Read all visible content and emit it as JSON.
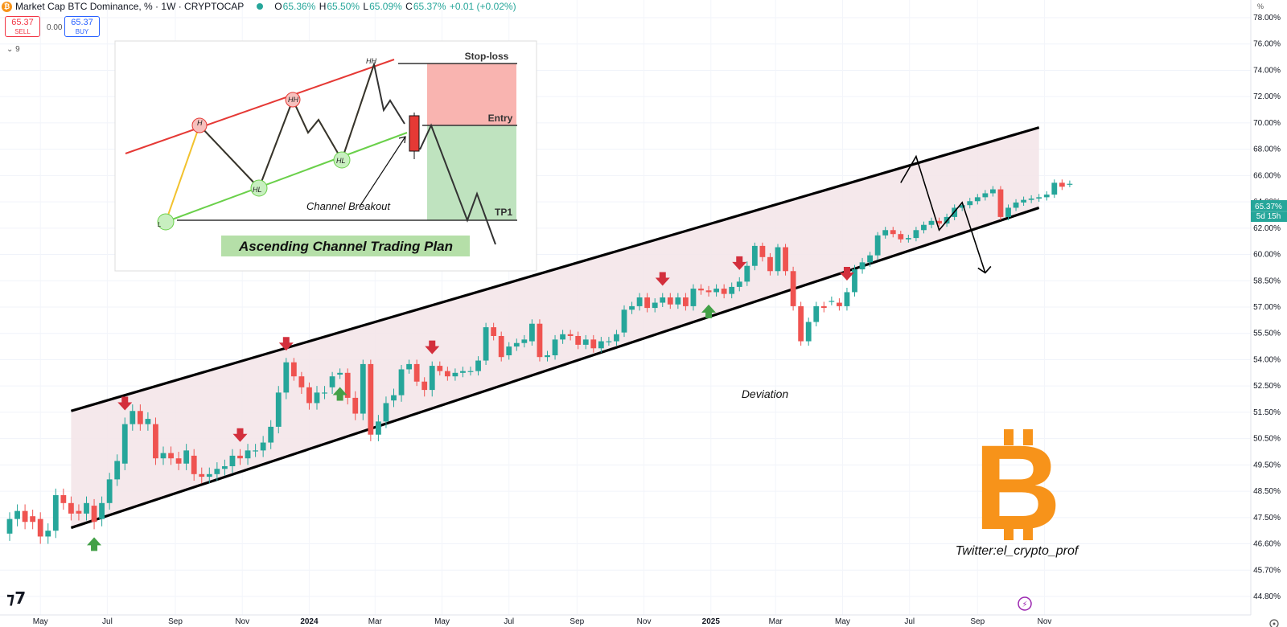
{
  "header": {
    "symbol_title": "Market Cap BTC Dominance, % · 1W · CRYPTOCAP",
    "btc_icon": "bitcoin-icon",
    "ohlc": {
      "open_label": "O",
      "open": "65.36%",
      "high_label": "H",
      "high": "65.50%",
      "low_label": "L",
      "low": "65.09%",
      "close_label": "C",
      "close": "65.37%",
      "change": "+0.01 (+0.02%)"
    },
    "sell_price": "65.37",
    "sell_label": "SELL",
    "spread": "0.00",
    "buy_price": "65.37",
    "buy_label": "BUY",
    "indicator_toggle": "9"
  },
  "price_axis": {
    "unit_label": "%",
    "ticks": [
      "78.00%",
      "76.00%",
      "74.00%",
      "72.00%",
      "70.00%",
      "68.00%",
      "66.00%",
      "64.00%",
      "62.00%",
      "60.00%",
      "58.50%",
      "57.00%",
      "55.50%",
      "54.00%",
      "52.50%",
      "51.50%",
      "50.50%",
      "49.50%",
      "48.50%",
      "47.50%",
      "46.60%",
      "45.70%",
      "44.80%"
    ],
    "current_price": "65.37%",
    "countdown": "5d 15h"
  },
  "time_axis": {
    "ticks": [
      "May",
      "Jul",
      "Sep",
      "Nov",
      "2024",
      "Mar",
      "May",
      "Jul",
      "Sep",
      "Nov",
      "2025",
      "Mar",
      "May",
      "Jul",
      "Sep",
      "Nov"
    ]
  },
  "colors": {
    "up": "#26a69a",
    "down": "#ef5350",
    "channel_fill": "#f3e4e7",
    "red_arrow": "#d32f3c",
    "green_arrow": "#43a047",
    "btc_orange": "#f7931a"
  },
  "chart_data": {
    "type": "candlestick",
    "title": "Market Cap BTC Dominance, % · 1W · CRYPTOCAP",
    "xlabel": "",
    "ylabel": "",
    "y_unit": "%",
    "ylim": [
      44.4,
      78.4
    ],
    "period": "1W",
    "x_start": "2023-04-03",
    "candles": [
      {
        "o": 46.95,
        "c": 47.45
      },
      {
        "o": 47.45,
        "c": 47.75
      },
      {
        "o": 47.75,
        "c": 47.35
      },
      {
        "o": 47.55,
        "c": 47.35
      },
      {
        "o": 47.45,
        "c": 46.85
      },
      {
        "o": 46.85,
        "c": 47.05
      },
      {
        "o": 47.05,
        "c": 48.35
      },
      {
        "o": 48.35,
        "c": 48.05
      },
      {
        "o": 48.05,
        "c": 47.65
      },
      {
        "o": 47.75,
        "c": 47.65
      },
      {
        "o": 47.65,
        "c": 48.05
      },
      {
        "o": 47.95,
        "c": 47.35
      },
      {
        "o": 47.45,
        "c": 48.05
      },
      {
        "o": 48.05,
        "c": 48.95
      },
      {
        "o": 48.95,
        "c": 49.65
      },
      {
        "o": 49.55,
        "c": 51.05
      },
      {
        "o": 51.05,
        "c": 51.55
      },
      {
        "o": 51.55,
        "c": 51.05
      },
      {
        "o": 51.05,
        "c": 51.25
      },
      {
        "o": 51.05,
        "c": 49.75
      },
      {
        "o": 49.75,
        "c": 49.95
      },
      {
        "o": 49.95,
        "c": 49.75
      },
      {
        "o": 49.75,
        "c": 49.55
      },
      {
        "o": 49.55,
        "c": 50.05
      },
      {
        "o": 49.85,
        "c": 49.15
      },
      {
        "o": 49.15,
        "c": 49.05
      },
      {
        "o": 49.05,
        "c": 49.15
      },
      {
        "o": 49.15,
        "c": 49.35
      },
      {
        "o": 49.35,
        "c": 49.45
      },
      {
        "o": 49.45,
        "c": 49.85
      },
      {
        "o": 49.85,
        "c": 49.75
      },
      {
        "o": 49.75,
        "c": 50.05
      },
      {
        "o": 50.05,
        "c": 50.05
      },
      {
        "o": 50.05,
        "c": 50.35
      },
      {
        "o": 50.35,
        "c": 50.95
      },
      {
        "o": 50.95,
        "c": 52.25
      },
      {
        "o": 52.25,
        "c": 53.85
      },
      {
        "o": 53.85,
        "c": 53.05
      },
      {
        "o": 53.05,
        "c": 52.45
      },
      {
        "o": 52.45,
        "c": 51.85
      },
      {
        "o": 51.85,
        "c": 52.25
      },
      {
        "o": 52.25,
        "c": 52.25
      },
      {
        "o": 52.45,
        "c": 53.05
      },
      {
        "o": 53.15,
        "c": 53.25
      },
      {
        "o": 53.25,
        "c": 52.05
      },
      {
        "o": 52.05,
        "c": 51.45
      },
      {
        "o": 51.45,
        "c": 53.75
      },
      {
        "o": 53.75,
        "c": 50.65
      },
      {
        "o": 50.65,
        "c": 51.15
      },
      {
        "o": 51.15,
        "c": 51.85
      },
      {
        "o": 51.95,
        "c": 52.15
      },
      {
        "o": 52.15,
        "c": 53.45
      },
      {
        "o": 53.45,
        "c": 53.75
      },
      {
        "o": 53.75,
        "c": 52.75
      },
      {
        "o": 52.75,
        "c": 52.35
      },
      {
        "o": 52.35,
        "c": 53.65
      },
      {
        "o": 53.65,
        "c": 53.35
      },
      {
        "o": 53.35,
        "c": 53.05
      },
      {
        "o": 53.05,
        "c": 53.25
      },
      {
        "o": 53.25,
        "c": 53.35
      },
      {
        "o": 53.35,
        "c": 53.35
      },
      {
        "o": 53.35,
        "c": 53.95
      },
      {
        "o": 53.95,
        "c": 55.85
      },
      {
        "o": 55.85,
        "c": 55.35
      },
      {
        "o": 55.35,
        "c": 54.15
      },
      {
        "o": 54.25,
        "c": 54.75
      },
      {
        "o": 54.75,
        "c": 54.95
      },
      {
        "o": 54.95,
        "c": 55.15
      },
      {
        "o": 55.05,
        "c": 56.05
      },
      {
        "o": 56.05,
        "c": 54.15
      },
      {
        "o": 54.15,
        "c": 54.25
      },
      {
        "o": 54.25,
        "c": 55.15
      },
      {
        "o": 55.15,
        "c": 55.45
      },
      {
        "o": 55.45,
        "c": 55.35
      },
      {
        "o": 55.35,
        "c": 54.85
      },
      {
        "o": 54.85,
        "c": 55.15
      },
      {
        "o": 55.15,
        "c": 54.65
      },
      {
        "o": 54.65,
        "c": 55.05
      },
      {
        "o": 55.05,
        "c": 55.05
      },
      {
        "o": 55.05,
        "c": 55.45
      },
      {
        "o": 55.55,
        "c": 56.85
      },
      {
        "o": 56.85,
        "c": 57.05
      },
      {
        "o": 57.05,
        "c": 57.55
      },
      {
        "o": 57.55,
        "c": 56.95
      },
      {
        "o": 56.95,
        "c": 57.25
      },
      {
        "o": 57.25,
        "c": 57.55
      },
      {
        "o": 57.55,
        "c": 57.15
      },
      {
        "o": 57.15,
        "c": 57.55
      },
      {
        "o": 57.55,
        "c": 57.05
      },
      {
        "o": 57.05,
        "c": 58.05
      },
      {
        "o": 58.05,
        "c": 57.95
      },
      {
        "o": 57.95,
        "c": 57.85
      },
      {
        "o": 57.85,
        "c": 58.05
      },
      {
        "o": 58.05,
        "c": 57.75
      },
      {
        "o": 57.75,
        "c": 58.15
      },
      {
        "o": 58.15,
        "c": 58.45
      },
      {
        "o": 58.45,
        "c": 59.35
      },
      {
        "o": 59.35,
        "c": 60.65
      },
      {
        "o": 60.65,
        "c": 59.85
      },
      {
        "o": 59.85,
        "c": 59.05
      },
      {
        "o": 59.05,
        "c": 60.55
      },
      {
        "o": 60.55,
        "c": 59.05
      },
      {
        "o": 59.05,
        "c": 57.05
      },
      {
        "o": 57.05,
        "c": 55.05
      },
      {
        "o": 55.05,
        "c": 56.15
      },
      {
        "o": 56.15,
        "c": 57.05
      },
      {
        "o": 57.05,
        "c": 56.95
      },
      {
        "o": 57.35,
        "c": 57.35
      },
      {
        "o": 57.25,
        "c": 57.05
      },
      {
        "o": 57.05,
        "c": 57.85
      },
      {
        "o": 57.85,
        "c": 59.15
      },
      {
        "o": 59.15,
        "c": 59.55
      },
      {
        "o": 59.55,
        "c": 59.95
      },
      {
        "o": 59.95,
        "c": 61.45
      },
      {
        "o": 61.45,
        "c": 61.85
      },
      {
        "o": 61.85,
        "c": 61.55
      },
      {
        "o": 61.55,
        "c": 61.15
      },
      {
        "o": 61.15,
        "c": 61.25
      },
      {
        "o": 61.25,
        "c": 61.85
      },
      {
        "o": 61.85,
        "c": 62.25
      },
      {
        "o": 62.25,
        "c": 62.55
      },
      {
        "o": 62.55,
        "c": 62.35
      },
      {
        "o": 62.35,
        "c": 62.85
      },
      {
        "o": 62.85,
        "c": 63.55
      },
      {
        "o": 63.55,
        "c": 63.75
      },
      {
        "o": 63.75,
        "c": 64.05
      },
      {
        "o": 64.05,
        "c": 64.35
      },
      {
        "o": 64.35,
        "c": 64.65
      },
      {
        "o": 64.65,
        "c": 64.95
      },
      {
        "o": 64.95,
        "c": 62.85
      },
      {
        "o": 62.85,
        "c": 63.55
      },
      {
        "o": 63.55,
        "c": 63.95
      },
      {
        "o": 63.95,
        "c": 64.15
      },
      {
        "o": 64.15,
        "c": 64.25
      },
      {
        "o": 64.25,
        "c": 64.35
      },
      {
        "o": 64.35,
        "c": 64.55
      },
      {
        "o": 64.55,
        "c": 65.45
      },
      {
        "o": 65.45,
        "c": 65.15
      },
      {
        "o": 65.36,
        "c": 65.37
      }
    ],
    "channel": {
      "upper": [
        {
          "x": "2023-05-29",
          "y": 51.55
        },
        {
          "x": "2025-10-27",
          "y": 69.65
        }
      ],
      "lower": [
        {
          "x": "2023-05-29",
          "y": 47.15
        },
        {
          "x": "2025-10-27",
          "y": 63.55
        }
      ]
    },
    "projection_path": [
      {
        "x": "2025-06-23",
        "y": 65.45
      },
      {
        "x": "2025-07-07",
        "y": 67.45
      },
      {
        "x": "2025-07-28",
        "y": 61.85
      },
      {
        "x": "2025-08-18",
        "y": 63.95
      },
      {
        "x": "2025-09-08",
        "y": 58.95
      }
    ],
    "markers": {
      "sell_arrows": [
        "2023-07-17",
        "2023-10-30",
        "2023-12-11",
        "2024-04-22",
        "2024-11-18",
        "2025-01-27",
        "2025-05-05"
      ],
      "buy_arrows": [
        "2023-06-19",
        "2024-01-29",
        "2024-12-30"
      ]
    },
    "annotations": {
      "deviation": "Deviation",
      "twitter": "Twitter:el_crypto_prof"
    }
  },
  "inset": {
    "title": "Ascending Channel Trading Plan",
    "stop_loss": "Stop-loss",
    "entry": "Entry",
    "tp1": "TP1",
    "breakout": "Channel Breakout",
    "labels": [
      "H",
      "HH",
      "HH",
      "HL",
      "HL",
      "L"
    ]
  },
  "toolbar": {
    "tv_logo": "tradingview-logo",
    "lightning_icon": "lightning-icon",
    "settings_icon": "gear-icon"
  }
}
